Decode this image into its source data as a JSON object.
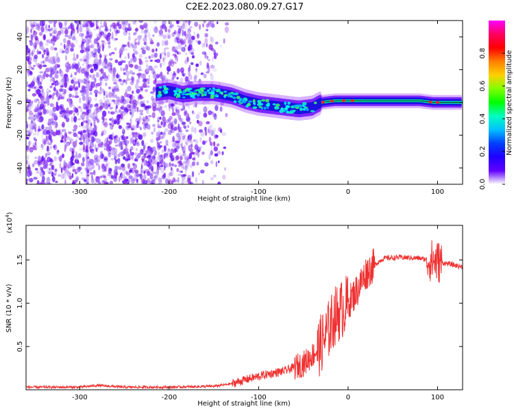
{
  "title": "C2E2.2023.080.09.27.G17",
  "colors": {
    "snr_line": "#ee3030",
    "frame": "#000000"
  },
  "chart_data": [
    {
      "type": "heatmap",
      "xlabel": "Height of straight line (km)",
      "ylabel": "Frequency (Hz)",
      "xlim": [
        -360,
        128
      ],
      "ylim": [
        -50,
        50
      ],
      "xticks": [
        -300,
        -200,
        -100,
        0,
        100
      ],
      "xtick_labels": [
        "-300",
        "-200",
        "-100",
        "0",
        "100"
      ],
      "yticks": [
        -40,
        -20,
        0,
        20,
        40
      ],
      "ytick_labels": [
        "-40",
        "-20",
        "0",
        "20",
        "40"
      ],
      "colorbar": {
        "label": "Normalized spectral amplitude",
        "range": [
          0,
          1
        ],
        "ticks": [
          0.0,
          0.2,
          0.4,
          0.6,
          0.8
        ],
        "tick_labels": [
          "0.0",
          "0.2",
          "0.4",
          "0.6",
          "0.8"
        ],
        "stops": [
          "#ff00ff",
          "#ff0060",
          "#ff0000",
          "#ff8000",
          "#ffd000",
          "#80ff00",
          "#00ff00",
          "#00ffc0",
          "#00c0ff",
          "#0040ff",
          "#2000ff",
          "#6000ff",
          "#ffffff"
        ]
      },
      "ridge": [
        [
          -215,
          6
        ],
        [
          -200,
          7
        ],
        [
          -185,
          5
        ],
        [
          -170,
          6
        ],
        [
          -150,
          6
        ],
        [
          -130,
          4
        ],
        [
          -115,
          1
        ],
        [
          -100,
          -1
        ],
        [
          -85,
          -2
        ],
        [
          -70,
          -3
        ],
        [
          -55,
          -4
        ],
        [
          -40,
          -3
        ],
        [
          -30,
          0
        ],
        [
          -15,
          1
        ],
        [
          0,
          1
        ],
        [
          20,
          1
        ],
        [
          50,
          1
        ],
        [
          80,
          1
        ],
        [
          95,
          0
        ],
        [
          110,
          0
        ],
        [
          128,
          0
        ]
      ]
    },
    {
      "type": "line",
      "xlabel": "Height of straight line (km)",
      "ylabel": "SNR (10 * v/v)",
      "y_multiplier": "(x10",
      "y_multiplier_exp": "4",
      "y_multiplier_close": ")",
      "xlim": [
        -360,
        128
      ],
      "ylim": [
        0,
        1.9
      ],
      "xticks": [
        -300,
        -200,
        -100,
        0,
        100
      ],
      "xtick_labels": [
        "-300",
        "-200",
        "-100",
        "0",
        "100"
      ],
      "yticks": [
        0.5,
        1.0,
        1.5
      ],
      "ytick_labels": [
        "0.5",
        "1.0",
        "1.5"
      ],
      "trend": [
        [
          -360,
          0.03
        ],
        [
          -300,
          0.03
        ],
        [
          -280,
          0.05
        ],
        [
          -250,
          0.03
        ],
        [
          -200,
          0.03
        ],
        [
          -150,
          0.04
        ],
        [
          -130,
          0.07
        ],
        [
          -110,
          0.13
        ],
        [
          -90,
          0.18
        ],
        [
          -70,
          0.22
        ],
        [
          -50,
          0.3
        ],
        [
          -35,
          0.45
        ],
        [
          -25,
          0.62
        ],
        [
          -15,
          0.85
        ],
        [
          -5,
          0.95
        ],
        [
          0,
          1.0
        ],
        [
          10,
          1.15
        ],
        [
          20,
          1.35
        ],
        [
          30,
          1.45
        ],
        [
          40,
          1.52
        ],
        [
          60,
          1.53
        ],
        [
          80,
          1.52
        ],
        [
          90,
          1.5
        ],
        [
          100,
          1.48
        ],
        [
          110,
          1.46
        ],
        [
          128,
          1.42
        ]
      ]
    }
  ]
}
